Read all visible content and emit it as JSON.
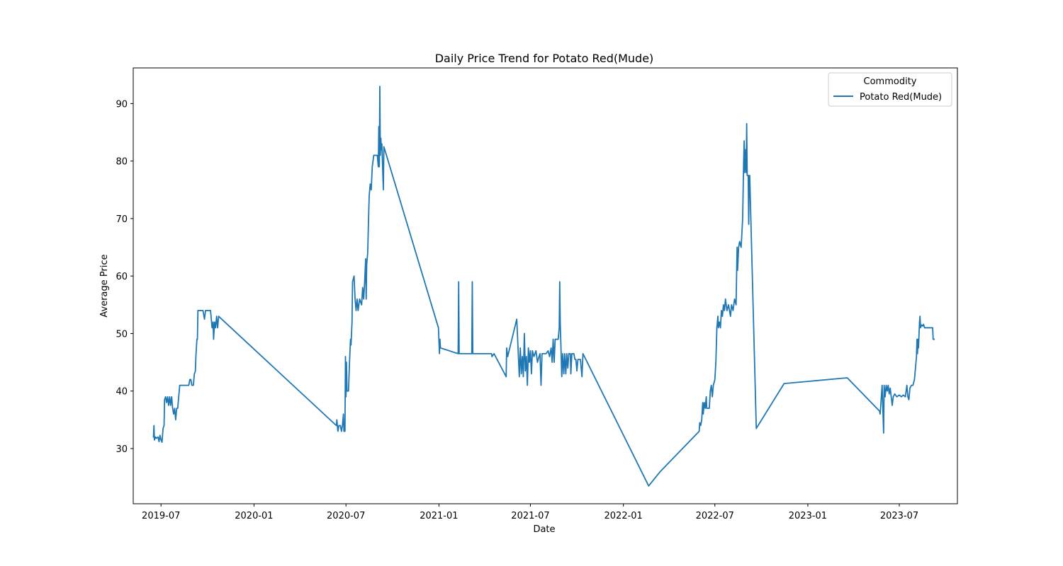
{
  "chart_data": {
    "type": "line",
    "title": "Daily Price Trend for Potato Red(Mude)",
    "xlabel": "Date",
    "ylabel": "Average Price",
    "x_range": [
      "2019-05-07",
      "2023-10-24"
    ],
    "ylim": [
      20.4,
      96.2
    ],
    "x_ticks": [
      "2019-07",
      "2020-01",
      "2020-07",
      "2021-01",
      "2021-07",
      "2022-01",
      "2022-07",
      "2023-01",
      "2023-07"
    ],
    "x_tick_dates": [
      "2019-07-01",
      "2020-01-01",
      "2020-07-01",
      "2021-01-01",
      "2021-07-01",
      "2022-01-01",
      "2022-07-01",
      "2023-01-01",
      "2023-07-01"
    ],
    "y_ticks": [
      30,
      40,
      50,
      60,
      70,
      80,
      90
    ],
    "grid": false,
    "legend": {
      "title": "Commodity",
      "placement": "top-right"
    },
    "series": [
      {
        "name": "Potato Red(Mude)",
        "color": "#1f77b4",
        "points": [
          [
            "2019-06-16",
            32
          ],
          [
            "2019-06-17",
            34
          ],
          [
            "2019-06-18",
            31.5
          ],
          [
            "2019-06-20",
            32
          ],
          [
            "2019-06-22",
            31.8
          ],
          [
            "2019-06-25",
            32
          ],
          [
            "2019-06-27",
            31.2
          ],
          [
            "2019-06-29",
            32.3
          ],
          [
            "2019-07-01",
            31.5
          ],
          [
            "2019-07-03",
            31.1
          ],
          [
            "2019-07-05",
            33.5
          ],
          [
            "2019-07-07",
            34
          ],
          [
            "2019-07-08",
            38.5
          ],
          [
            "2019-07-10",
            39
          ],
          [
            "2019-07-12",
            38
          ],
          [
            "2019-07-14",
            39
          ],
          [
            "2019-07-16",
            37.5
          ],
          [
            "2019-07-18",
            39
          ],
          [
            "2019-07-20",
            37.5
          ],
          [
            "2019-07-22",
            39
          ],
          [
            "2019-07-24",
            37
          ],
          [
            "2019-07-26",
            36
          ],
          [
            "2019-07-28",
            37
          ],
          [
            "2019-07-30",
            35
          ],
          [
            "2019-08-01",
            37
          ],
          [
            "2019-08-03",
            37
          ],
          [
            "2019-08-05",
            39
          ],
          [
            "2019-08-07",
            41
          ],
          [
            "2019-08-15",
            41
          ],
          [
            "2019-08-25",
            41
          ],
          [
            "2019-08-27",
            42
          ],
          [
            "2019-08-29",
            42
          ],
          [
            "2019-08-31",
            41
          ],
          [
            "2019-09-03",
            41
          ],
          [
            "2019-09-05",
            43
          ],
          [
            "2019-09-07",
            43.5
          ],
          [
            "2019-09-08",
            46
          ],
          [
            "2019-09-10",
            49
          ],
          [
            "2019-09-11",
            49
          ],
          [
            "2019-09-12",
            54
          ],
          [
            "2019-09-22",
            54
          ],
          [
            "2019-09-25",
            52.5
          ],
          [
            "2019-09-27",
            54
          ],
          [
            "2019-10-07",
            54
          ],
          [
            "2019-10-10",
            51
          ],
          [
            "2019-10-12",
            52
          ],
          [
            "2019-10-13",
            49
          ],
          [
            "2019-10-15",
            52
          ],
          [
            "2019-10-17",
            51
          ],
          [
            "2019-10-19",
            53
          ],
          [
            "2019-10-21",
            51
          ],
          [
            "2019-10-23",
            53
          ],
          [
            "2020-06-12",
            34
          ],
          [
            "2020-06-13",
            35
          ],
          [
            "2020-06-15",
            33
          ],
          [
            "2020-06-17",
            34
          ],
          [
            "2020-06-20",
            34
          ],
          [
            "2020-06-22",
            33
          ],
          [
            "2020-06-24",
            34
          ],
          [
            "2020-06-26",
            36
          ],
          [
            "2020-06-27",
            33
          ],
          [
            "2020-06-29",
            33
          ],
          [
            "2020-06-30",
            46
          ],
          [
            "2020-07-01",
            39
          ],
          [
            "2020-07-02",
            45
          ],
          [
            "2020-07-03",
            40
          ],
          [
            "2020-07-06",
            40
          ],
          [
            "2020-07-08",
            45
          ],
          [
            "2020-07-10",
            49
          ],
          [
            "2020-07-11",
            48
          ],
          [
            "2020-07-13",
            52
          ],
          [
            "2020-07-14",
            59
          ],
          [
            "2020-07-17",
            60
          ],
          [
            "2020-07-19",
            56
          ],
          [
            "2020-07-21",
            54
          ],
          [
            "2020-07-23",
            56
          ],
          [
            "2020-07-25",
            54
          ],
          [
            "2020-07-28",
            56
          ],
          [
            "2020-08-01",
            55
          ],
          [
            "2020-08-03",
            58
          ],
          [
            "2020-08-05",
            56
          ],
          [
            "2020-08-07",
            59
          ],
          [
            "2020-08-09",
            63
          ],
          [
            "2020-08-10",
            56
          ],
          [
            "2020-08-11",
            62
          ],
          [
            "2020-08-13",
            64
          ],
          [
            "2020-08-15",
            71
          ],
          [
            "2020-08-16",
            74
          ],
          [
            "2020-08-18",
            76
          ],
          [
            "2020-08-20",
            75
          ],
          [
            "2020-08-22",
            79
          ],
          [
            "2020-08-25",
            81
          ],
          [
            "2020-09-01",
            81
          ],
          [
            "2020-09-03",
            79
          ],
          [
            "2020-09-04",
            86
          ],
          [
            "2020-09-05",
            79
          ],
          [
            "2020-09-06",
            93
          ],
          [
            "2020-09-07",
            81
          ],
          [
            "2020-09-08",
            84
          ],
          [
            "2020-09-09",
            82
          ],
          [
            "2020-09-10",
            83
          ],
          [
            "2020-09-13",
            75
          ],
          [
            "2020-09-14",
            82.5
          ],
          [
            "2020-12-31",
            51
          ],
          [
            "2021-01-02",
            46.5
          ],
          [
            "2021-01-03",
            49
          ],
          [
            "2021-01-04",
            47.5
          ],
          [
            "2021-02-08",
            46.5
          ],
          [
            "2021-02-09",
            59
          ],
          [
            "2021-02-10",
            46.5
          ],
          [
            "2021-03-07",
            46.5
          ],
          [
            "2021-03-08",
            59
          ],
          [
            "2021-03-09",
            46.5
          ],
          [
            "2021-04-15",
            46.5
          ],
          [
            "2021-04-16",
            46
          ],
          [
            "2021-04-20",
            46.5
          ],
          [
            "2021-05-14",
            42.5
          ],
          [
            "2021-05-15",
            47.5
          ],
          [
            "2021-05-17",
            46
          ],
          [
            "2021-06-04",
            52.5
          ],
          [
            "2021-06-09",
            42.5
          ],
          [
            "2021-06-11",
            47.5
          ],
          [
            "2021-06-13",
            43
          ],
          [
            "2021-06-15",
            46
          ],
          [
            "2021-06-17",
            42.5
          ],
          [
            "2021-06-19",
            50
          ],
          [
            "2021-06-21",
            43.5
          ],
          [
            "2021-06-23",
            46
          ],
          [
            "2021-06-25",
            41
          ],
          [
            "2021-06-27",
            47.5
          ],
          [
            "2021-06-29",
            45
          ],
          [
            "2021-07-01",
            47
          ],
          [
            "2021-07-03",
            43
          ],
          [
            "2021-07-05",
            47
          ],
          [
            "2021-07-08",
            46
          ],
          [
            "2021-07-12",
            47
          ],
          [
            "2021-07-15",
            45
          ],
          [
            "2021-07-18",
            46
          ],
          [
            "2021-07-20",
            46.5
          ],
          [
            "2021-07-22",
            41
          ],
          [
            "2021-07-24",
            46.5
          ],
          [
            "2021-08-01",
            46.5
          ],
          [
            "2021-08-05",
            47
          ],
          [
            "2021-08-08",
            46
          ],
          [
            "2021-08-11",
            47.5
          ],
          [
            "2021-08-13",
            45
          ],
          [
            "2021-08-15",
            49
          ],
          [
            "2021-08-17",
            45
          ],
          [
            "2021-08-19",
            49
          ],
          [
            "2021-08-25",
            49
          ],
          [
            "2021-08-27",
            51
          ],
          [
            "2021-08-28",
            59
          ],
          [
            "2021-08-29",
            52
          ],
          [
            "2021-08-31",
            46
          ],
          [
            "2021-09-01",
            42.5
          ],
          [
            "2021-09-03",
            46.5
          ],
          [
            "2021-09-05",
            43
          ],
          [
            "2021-09-07",
            46.5
          ],
          [
            "2021-09-09",
            43
          ],
          [
            "2021-09-11",
            46.5
          ],
          [
            "2021-09-13",
            44
          ],
          [
            "2021-09-15",
            46.5
          ],
          [
            "2021-09-18",
            46.5
          ],
          [
            "2021-09-19",
            43
          ],
          [
            "2021-09-21",
            46.5
          ],
          [
            "2021-09-25",
            46.5
          ],
          [
            "2021-09-27",
            45.5
          ],
          [
            "2021-09-29",
            45.5
          ],
          [
            "2021-10-01",
            43.5
          ],
          [
            "2021-10-03",
            45.5
          ],
          [
            "2021-10-08",
            45.5
          ],
          [
            "2021-10-11",
            42.5
          ],
          [
            "2021-10-13",
            46.5
          ],
          [
            "2022-02-20",
            23.5
          ],
          [
            "2022-03-15",
            26
          ],
          [
            "2022-05-31",
            33
          ],
          [
            "2022-06-01",
            34.5
          ],
          [
            "2022-06-03",
            34
          ],
          [
            "2022-06-05",
            35
          ],
          [
            "2022-06-07",
            38
          ],
          [
            "2022-06-08",
            36
          ],
          [
            "2022-06-10",
            38
          ],
          [
            "2022-06-12",
            37
          ],
          [
            "2022-06-14",
            39
          ],
          [
            "2022-06-15",
            37
          ],
          [
            "2022-06-20",
            37
          ],
          [
            "2022-06-22",
            40
          ],
          [
            "2022-06-24",
            41
          ],
          [
            "2022-06-26",
            39
          ],
          [
            "2022-06-28",
            41
          ],
          [
            "2022-07-01",
            42
          ],
          [
            "2022-07-03",
            45
          ],
          [
            "2022-07-05",
            51
          ],
          [
            "2022-07-07",
            53
          ],
          [
            "2022-07-08",
            51
          ],
          [
            "2022-07-10",
            52
          ],
          [
            "2022-07-12",
            51
          ],
          [
            "2022-07-14",
            54
          ],
          [
            "2022-07-16",
            53
          ],
          [
            "2022-07-18",
            55
          ],
          [
            "2022-07-20",
            54
          ],
          [
            "2022-07-22",
            56
          ],
          [
            "2022-07-25",
            54
          ],
          [
            "2022-07-28",
            55
          ],
          [
            "2022-08-01",
            53
          ],
          [
            "2022-08-03",
            55
          ],
          [
            "2022-08-06",
            54
          ],
          [
            "2022-08-09",
            56
          ],
          [
            "2022-08-12",
            55
          ],
          [
            "2022-08-14",
            65
          ],
          [
            "2022-08-15",
            61
          ],
          [
            "2022-08-17",
            65
          ],
          [
            "2022-08-19",
            66
          ],
          [
            "2022-08-22",
            65
          ],
          [
            "2022-08-25",
            70
          ],
          [
            "2022-08-27",
            80
          ],
          [
            "2022-08-28",
            83.5
          ],
          [
            "2022-08-29",
            78
          ],
          [
            "2022-08-30",
            80
          ],
          [
            "2022-08-31",
            82
          ],
          [
            "2022-09-01",
            78
          ],
          [
            "2022-09-02",
            86.5
          ],
          [
            "2022-09-03",
            77.5
          ],
          [
            "2022-09-05",
            77.5
          ],
          [
            "2022-09-06",
            69
          ],
          [
            "2022-09-07",
            77.5
          ],
          [
            "2022-09-08",
            77.5
          ],
          [
            "2022-09-21",
            33.5
          ],
          [
            "2022-11-15",
            41.3
          ],
          [
            "2023-03-20",
            42.3
          ],
          [
            "2023-05-23",
            36.5
          ],
          [
            "2023-05-24",
            36
          ],
          [
            "2023-05-25",
            37
          ],
          [
            "2023-05-28",
            41
          ],
          [
            "2023-05-31",
            32.7
          ],
          [
            "2023-06-01",
            41
          ],
          [
            "2023-06-03",
            39
          ],
          [
            "2023-06-05",
            41
          ],
          [
            "2023-06-07",
            40
          ],
          [
            "2023-06-09",
            41
          ],
          [
            "2023-06-11",
            39.5
          ],
          [
            "2023-06-13",
            40.5
          ],
          [
            "2023-06-15",
            39
          ],
          [
            "2023-06-17",
            37.5
          ],
          [
            "2023-06-19",
            39
          ],
          [
            "2023-06-22",
            39.5
          ],
          [
            "2023-06-26",
            39
          ],
          [
            "2023-07-01",
            39.3
          ],
          [
            "2023-07-05",
            39
          ],
          [
            "2023-07-09",
            39.3
          ],
          [
            "2023-07-13",
            39
          ],
          [
            "2023-07-16",
            41
          ],
          [
            "2023-07-18",
            39
          ],
          [
            "2023-07-20",
            38.5
          ],
          [
            "2023-07-22",
            40.5
          ],
          [
            "2023-07-25",
            41
          ],
          [
            "2023-07-28",
            41
          ],
          [
            "2023-07-31",
            42
          ],
          [
            "2023-08-02",
            44
          ],
          [
            "2023-08-04",
            46
          ],
          [
            "2023-08-05",
            49
          ],
          [
            "2023-08-06",
            46.5
          ],
          [
            "2023-08-07",
            49
          ],
          [
            "2023-08-08",
            47.5
          ],
          [
            "2023-08-10",
            52
          ],
          [
            "2023-08-11",
            53
          ],
          [
            "2023-08-12",
            51
          ],
          [
            "2023-08-14",
            51.5
          ],
          [
            "2023-08-16",
            51.3
          ],
          [
            "2023-08-18",
            51.6
          ],
          [
            "2023-08-20",
            51
          ],
          [
            "2023-08-25",
            51
          ],
          [
            "2023-08-30",
            51
          ],
          [
            "2023-09-05",
            51
          ],
          [
            "2023-09-06",
            49
          ],
          [
            "2023-09-08",
            49
          ]
        ]
      }
    ]
  }
}
